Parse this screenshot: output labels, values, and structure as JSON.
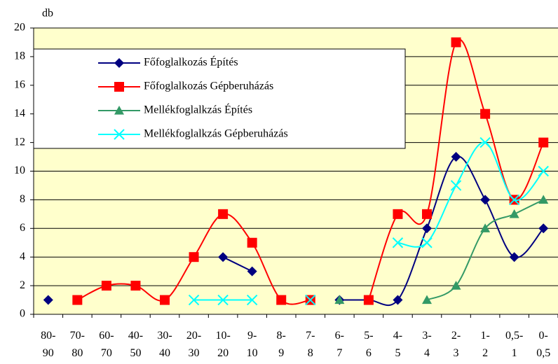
{
  "chart_data": {
    "type": "line",
    "y_label": "db",
    "categories": [
      "80-90",
      "70-80",
      "60-70",
      "40-50",
      "30-40",
      "20-30",
      "10-20",
      "9-10",
      "8-9",
      "7-8",
      "6-7",
      "5-6",
      "4-5",
      "3-4",
      "2-3",
      "1-2",
      "0,5-1",
      "0-0,5"
    ],
    "series": [
      {
        "name": "Főfoglalkozás Építés",
        "color": "#000080",
        "marker": "diamond",
        "values": [
          1,
          null,
          null,
          null,
          null,
          null,
          4,
          3,
          null,
          null,
          1,
          1,
          1,
          6,
          11,
          8,
          4,
          6
        ]
      },
      {
        "name": "Főfoglalkozás Gépberuházás",
        "color": "#ff0000",
        "marker": "square",
        "values": [
          null,
          1,
          2,
          2,
          1,
          4,
          7,
          5,
          1,
          1,
          null,
          1,
          7,
          7,
          19,
          14,
          8,
          12
        ]
      },
      {
        "name": "Mellékfoglalkzás Építés",
        "color": "#339966",
        "marker": "triangle",
        "values": [
          null,
          null,
          null,
          null,
          null,
          null,
          null,
          null,
          null,
          null,
          1,
          null,
          null,
          1,
          2,
          6,
          7,
          8
        ]
      },
      {
        "name": "Mellékfoglalkzás Gépberuházás",
        "color": "#00ffff",
        "marker": "x",
        "values": [
          null,
          null,
          null,
          null,
          null,
          1,
          1,
          1,
          null,
          1,
          null,
          null,
          5,
          5,
          9,
          12,
          8,
          10
        ]
      }
    ],
    "ylim": [
      0,
      20
    ],
    "yticks": [
      0,
      2,
      4,
      6,
      8,
      10,
      12,
      14,
      16,
      18,
      20
    ],
    "grid": true,
    "smooth": true
  }
}
